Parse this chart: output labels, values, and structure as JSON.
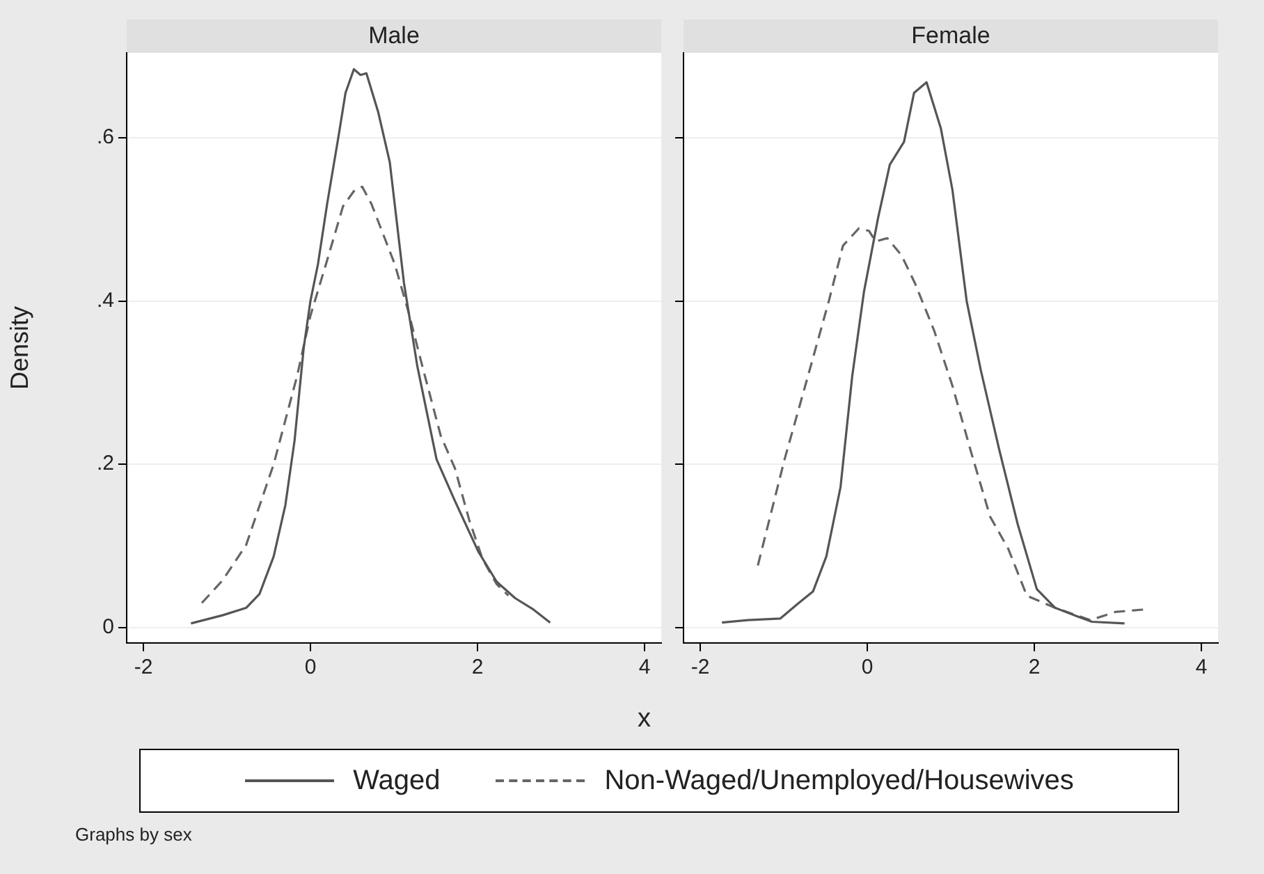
{
  "chart_data": [
    {
      "type": "line",
      "title": "Male",
      "xlabel": "x",
      "ylabel": "Density",
      "xlim": [
        -2.2,
        4.2
      ],
      "ylim": [
        -0.019,
        0.704
      ],
      "xticks": [
        -2,
        0,
        2,
        4
      ],
      "yticks": [
        {
          "value": 0,
          "label": "0"
        },
        {
          "value": 0.2,
          "label": ".2"
        },
        {
          "value": 0.4,
          "label": ".4"
        },
        {
          "value": 0.6,
          "label": ".6"
        }
      ],
      "grid": "y",
      "legend": "bottom",
      "annotations": [
        "Graphs by sex"
      ],
      "series": [
        {
          "name": "Waged",
          "color": "#555555",
          "line_style": "solid",
          "x": [
            -1.43,
            -1.05,
            -0.77,
            -0.61,
            -0.44,
            -0.3,
            -0.19,
            -0.08,
            0.0,
            0.09,
            0.2,
            0.34,
            0.42,
            0.52,
            0.6,
            0.67,
            0.81,
            0.95,
            1.12,
            1.28,
            1.51,
            1.73,
            2.01,
            2.23,
            2.45,
            2.67,
            2.87
          ],
          "values": [
            0.005,
            0.015,
            0.024,
            0.041,
            0.087,
            0.15,
            0.229,
            0.343,
            0.4,
            0.445,
            0.519,
            0.604,
            0.655,
            0.684,
            0.677,
            0.679,
            0.632,
            0.57,
            0.422,
            0.32,
            0.206,
            0.155,
            0.093,
            0.056,
            0.036,
            0.022,
            0.006
          ]
        },
        {
          "name": "Non-Waged/Unemployed/Housewives",
          "color": "#666666",
          "line_style": "dashed",
          "x": [
            -1.3,
            -1.05,
            -0.77,
            -0.44,
            -0.16,
            0.0,
            0.2,
            0.39,
            0.53,
            0.62,
            0.73,
            0.84,
            1.01,
            1.17,
            1.34,
            1.56,
            1.73,
            1.9,
            2.06,
            2.23,
            2.37
          ],
          "values": [
            0.03,
            0.058,
            0.101,
            0.2,
            0.308,
            0.382,
            0.45,
            0.516,
            0.536,
            0.54,
            0.519,
            0.49,
            0.445,
            0.388,
            0.32,
            0.235,
            0.195,
            0.132,
            0.084,
            0.053,
            0.039
          ]
        }
      ]
    },
    {
      "type": "line",
      "title": "Female",
      "xlim": [
        -2.2,
        4.2
      ],
      "ylim": [
        -0.019,
        0.704
      ],
      "xticks": [
        -2,
        0,
        2,
        4
      ],
      "yticks": [
        0,
        0.2,
        0.4,
        0.6
      ],
      "grid": "y",
      "tick_labels": "x",
      "series": [
        {
          "color": "#555555",
          "line_style": "solid",
          "x": [
            -1.74,
            -1.43,
            -1.04,
            -0.82,
            -0.65,
            -0.49,
            -0.32,
            -0.18,
            -0.04,
            0.13,
            0.27,
            0.44,
            0.56,
            0.71,
            0.88,
            1.02,
            1.19,
            1.36,
            1.58,
            1.8,
            2.03,
            2.25,
            2.53,
            2.69,
            3.08
          ],
          "values": [
            0.006,
            0.009,
            0.011,
            0.03,
            0.044,
            0.087,
            0.172,
            0.308,
            0.411,
            0.502,
            0.567,
            0.595,
            0.655,
            0.668,
            0.612,
            0.536,
            0.4,
            0.315,
            0.218,
            0.127,
            0.047,
            0.024,
            0.013,
            0.007,
            0.005
          ]
        },
        {
          "color": "#666666",
          "line_style": "dashed",
          "x": [
            -1.31,
            -0.99,
            -0.71,
            -0.46,
            -0.29,
            -0.1,
            0.02,
            0.1,
            0.24,
            0.41,
            0.57,
            0.8,
            1.02,
            1.24,
            1.47,
            1.69,
            1.91,
            2.25,
            2.67,
            2.97,
            3.31
          ],
          "values": [
            0.076,
            0.206,
            0.308,
            0.4,
            0.468,
            0.489,
            0.486,
            0.473,
            0.477,
            0.456,
            0.422,
            0.364,
            0.296,
            0.216,
            0.136,
            0.096,
            0.039,
            0.024,
            0.009,
            0.019,
            0.022
          ]
        }
      ]
    }
  ]
}
